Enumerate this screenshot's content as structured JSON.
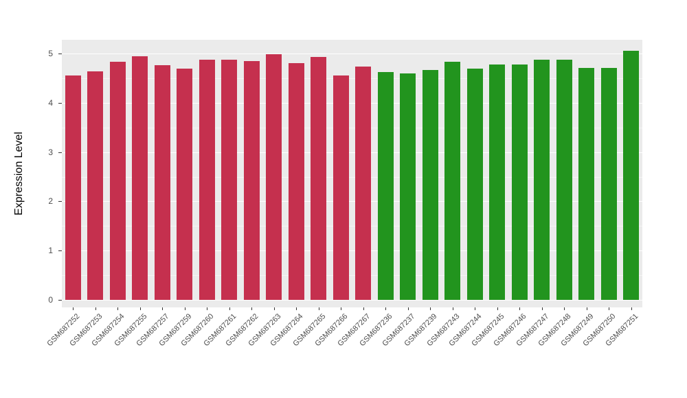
{
  "chart_data": {
    "type": "bar",
    "title": "",
    "xlabel": "",
    "ylabel": "Expression Level",
    "ylim": [
      0,
      5
    ],
    "yticks": [
      0,
      1,
      2,
      3,
      4,
      5
    ],
    "grid": "on",
    "legend": "none",
    "categories": [
      "GSM687252",
      "GSM687253",
      "GSM687254",
      "GSM687255",
      "GSM687257",
      "GSM687259",
      "GSM687260",
      "GSM687261",
      "GSM687262",
      "GSM687263",
      "GSM687264",
      "GSM687265",
      "GSM687266",
      "GSM687267",
      "GSM687236",
      "GSM687237",
      "GSM687239",
      "GSM687243",
      "GSM687244",
      "GSM687245",
      "GSM687246",
      "GSM687247",
      "GSM687248",
      "GSM687249",
      "GSM687250",
      "GSM687251"
    ],
    "values": [
      4.55,
      4.64,
      4.84,
      4.94,
      4.76,
      4.7,
      4.87,
      4.87,
      4.85,
      4.98,
      4.81,
      4.93,
      4.55,
      4.73,
      4.62,
      4.6,
      4.66,
      4.83,
      4.7,
      4.78,
      4.78,
      4.87,
      4.87,
      4.71,
      4.71,
      5.05
    ],
    "bar_groups": [
      "red",
      "red",
      "red",
      "red",
      "red",
      "red",
      "red",
      "red",
      "red",
      "red",
      "red",
      "red",
      "red",
      "red",
      "green",
      "green",
      "green",
      "green",
      "green",
      "green",
      "green",
      "green",
      "green",
      "green",
      "green",
      "green"
    ],
    "group_colors": {
      "red": "#C5304E",
      "green": "#22941E"
    },
    "colors": {
      "plot_background": "#EBEBEB",
      "grid_major": "#FFFFFF",
      "grid_minor": "rgba(255,255,255,0.55)",
      "tick_label": "#4D4D4D",
      "axis_title": "#000000",
      "tick_mark": "#333333"
    }
  }
}
